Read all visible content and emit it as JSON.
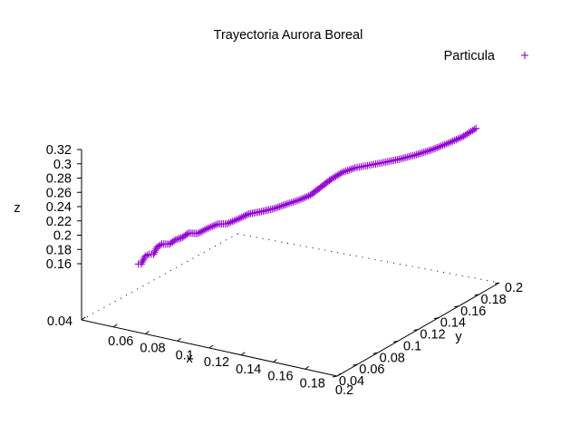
{
  "chart_data": {
    "type": "scatter",
    "title": "Trayectoria Aurora Boreal",
    "xlabel": "x",
    "ylabel": "y",
    "zlabel": "z",
    "xlim": [
      0.04,
      0.2
    ],
    "ylim": [
      0.04,
      0.2
    ],
    "zlim": [
      0.16,
      0.32
    ],
    "x_ticks": [
      "0.04",
      "0.06",
      "0.08",
      "0.1",
      "0.12",
      "0.14",
      "0.16",
      "0.18",
      "0.2"
    ],
    "y_ticks": [
      "0.04",
      "0.06",
      "0.08",
      "0.1",
      "0.12",
      "0.14",
      "0.16",
      "0.18",
      "0.2"
    ],
    "z_ticks": [
      "0.16",
      "0.18",
      "0.2",
      "0.22",
      "0.24",
      "0.26",
      "0.28",
      "0.3",
      "0.32"
    ],
    "legend_position": "top-right",
    "grid": false,
    "series": [
      {
        "name": "Particula",
        "color": "#9400d3",
        "marker": "plus",
        "points": [
          {
            "x": 0.064,
            "y": 0.059,
            "z": 0.157
          },
          {
            "x": 0.067,
            "y": 0.057,
            "z": 0.16
          },
          {
            "x": 0.067,
            "y": 0.061,
            "z": 0.168
          },
          {
            "x": 0.07,
            "y": 0.06,
            "z": 0.173
          },
          {
            "x": 0.071,
            "y": 0.063,
            "z": 0.171
          },
          {
            "x": 0.072,
            "y": 0.065,
            "z": 0.18
          },
          {
            "x": 0.075,
            "y": 0.065,
            "z": 0.186
          },
          {
            "x": 0.078,
            "y": 0.068,
            "z": 0.185
          },
          {
            "x": 0.08,
            "y": 0.071,
            "z": 0.19
          },
          {
            "x": 0.083,
            "y": 0.073,
            "z": 0.193
          },
          {
            "x": 0.085,
            "y": 0.076,
            "z": 0.198
          },
          {
            "x": 0.089,
            "y": 0.079,
            "z": 0.197
          },
          {
            "x": 0.092,
            "y": 0.083,
            "z": 0.202
          },
          {
            "x": 0.096,
            "y": 0.088,
            "z": 0.207
          },
          {
            "x": 0.1,
            "y": 0.091,
            "z": 0.207
          },
          {
            "x": 0.104,
            "y": 0.096,
            "z": 0.212
          },
          {
            "x": 0.108,
            "y": 0.1,
            "z": 0.218
          },
          {
            "x": 0.113,
            "y": 0.105,
            "z": 0.22
          },
          {
            "x": 0.118,
            "y": 0.11,
            "z": 0.223
          },
          {
            "x": 0.123,
            "y": 0.115,
            "z": 0.228
          },
          {
            "x": 0.128,
            "y": 0.119,
            "z": 0.233
          },
          {
            "x": 0.132,
            "y": 0.124,
            "z": 0.238
          },
          {
            "x": 0.136,
            "y": 0.128,
            "z": 0.248
          },
          {
            "x": 0.14,
            "y": 0.132,
            "z": 0.258
          },
          {
            "x": 0.144,
            "y": 0.137,
            "z": 0.266
          },
          {
            "x": 0.149,
            "y": 0.142,
            "z": 0.271
          },
          {
            "x": 0.155,
            "y": 0.147,
            "z": 0.274
          },
          {
            "x": 0.161,
            "y": 0.152,
            "z": 0.277
          },
          {
            "x": 0.167,
            "y": 0.158,
            "z": 0.28
          },
          {
            "x": 0.173,
            "y": 0.164,
            "z": 0.284
          },
          {
            "x": 0.179,
            "y": 0.171,
            "z": 0.289
          },
          {
            "x": 0.185,
            "y": 0.177,
            "z": 0.296
          },
          {
            "x": 0.191,
            "y": 0.183,
            "z": 0.304
          },
          {
            "x": 0.196,
            "y": 0.189,
            "z": 0.314
          }
        ]
      }
    ]
  }
}
